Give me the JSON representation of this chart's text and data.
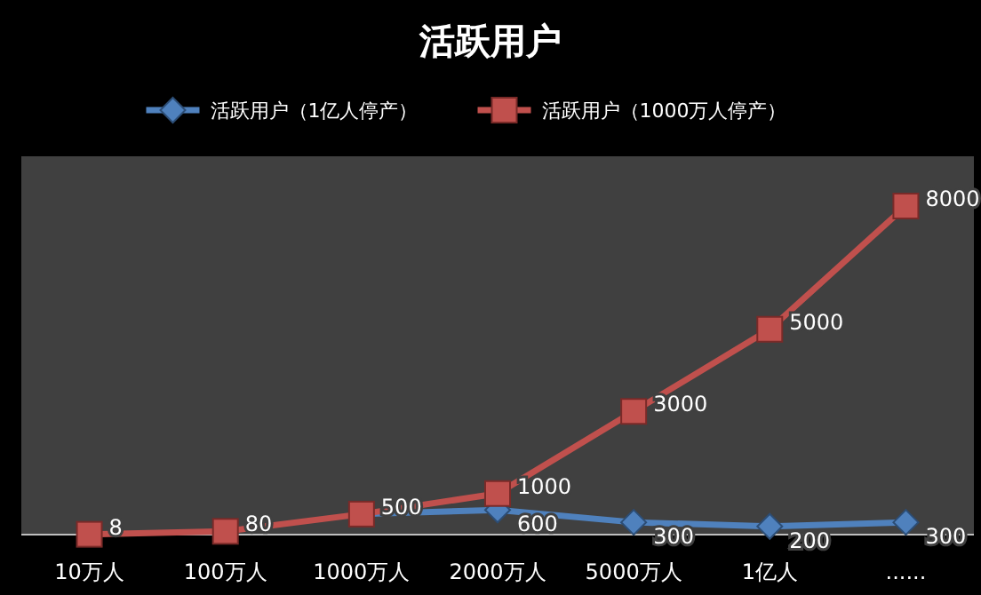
{
  "chart_data": {
    "type": "line",
    "title": "活跃用户",
    "categories": [
      "10万人",
      "100万人",
      "1000万人",
      "2000万人",
      "5000万人",
      "1亿人",
      "......"
    ],
    "series": [
      {
        "name": "活跃用户（1亿人停产）",
        "color": "#4f81bd",
        "marker": "diamond",
        "values": [
          null,
          null,
          500,
          600,
          300,
          200,
          300
        ],
        "value_labels": [
          null,
          null,
          null,
          "600",
          "300",
          "200",
          "300"
        ]
      },
      {
        "name": "活跃用户（1000万人停产）",
        "color": "#c0504d",
        "marker": "square",
        "values": [
          8,
          80,
          500,
          1000,
          3000,
          5000,
          8000
        ],
        "value_labels": [
          "8",
          "80",
          "500",
          "1000",
          "3000",
          "5000",
          "8000"
        ]
      }
    ],
    "legend": "top"
  }
}
